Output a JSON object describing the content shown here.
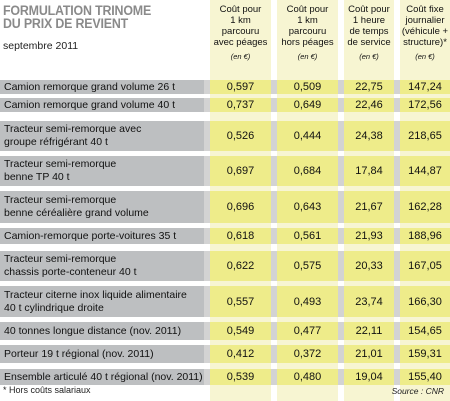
{
  "title_lines": [
    "FORMULATION TRINOME",
    "DU PRIX DE REVIENT"
  ],
  "subtitle": "septembre 2011",
  "columns": [
    {
      "label": "Coût pour\n1 km\nparcouru\navec péages",
      "unit": "(en €)"
    },
    {
      "label": "Coût pour\n1 km\nparcouru\nhors péages",
      "unit": "(en €)"
    },
    {
      "label": "Coût pour\n1 heure\nde temps\nde service",
      "unit": "(en €)"
    },
    {
      "label": "Coût fixe\njournalier\n(véhicule +\nstructure)*",
      "unit": "(en €)"
    }
  ],
  "rows": [
    {
      "label": "Camion remorque grand volume 26 t",
      "values": [
        "0,597",
        "0,509",
        "22,75",
        "147,24"
      ]
    },
    {
      "label": "Camion remorque grand volume 40 t",
      "values": [
        "0,737",
        "0,649",
        "22,46",
        "172,56"
      ]
    },
    {
      "label": "Tracteur semi-remorque avec\ngroupe réfrigérant 40 t",
      "values": [
        "0,526",
        "0,444",
        "24,38",
        "218,65"
      ]
    },
    {
      "label": "Tracteur semi-remorque\nbenne TP 40 t",
      "values": [
        "0,697",
        "0,684",
        "17,84",
        "144,87"
      ]
    },
    {
      "label": "Tracteur semi-remorque\nbenne céréalière grand volume",
      "values": [
        "0,696",
        "0,643",
        "21,67",
        "162,28"
      ]
    },
    {
      "label": "Camion-remorque porte-voitures 35 t",
      "values": [
        "0,618",
        "0,561",
        "21,93",
        "188,96"
      ]
    },
    {
      "label": "Tracteur semi-remorque\nchassis porte-conteneur 40 t",
      "values": [
        "0,622",
        "0,575",
        "20,33",
        "167,05"
      ]
    },
    {
      "label": "Tracteur citerne inox liquide alimentaire\n40 t cylindrique droite",
      "values": [
        "0,557",
        "0,493",
        "23,74",
        "166,30"
      ]
    },
    {
      "label": "40 tonnes longue distance (nov. 2011)",
      "values": [
        "0,549",
        "0,477",
        "22,11",
        "154,65"
      ]
    },
    {
      "label": "Porteur 19 t régional (nov. 2011)",
      "values": [
        "0,412",
        "0,372",
        "21,01",
        "159,31"
      ]
    },
    {
      "label": "Ensemble articulé 40 t régional (nov. 2011)",
      "values": [
        "0,539",
        "0,480",
        "19,04",
        "155,40"
      ]
    }
  ],
  "footnote": "* Hors coûts salariaux",
  "source": "Source : CNR",
  "colors": {
    "label_bg": "#bdbfc1",
    "row_bg": "#d3d3d3",
    "cell_bg": "#eeec8a",
    "column_bg": "#f7f5d2",
    "title": "#8a8a8a"
  }
}
